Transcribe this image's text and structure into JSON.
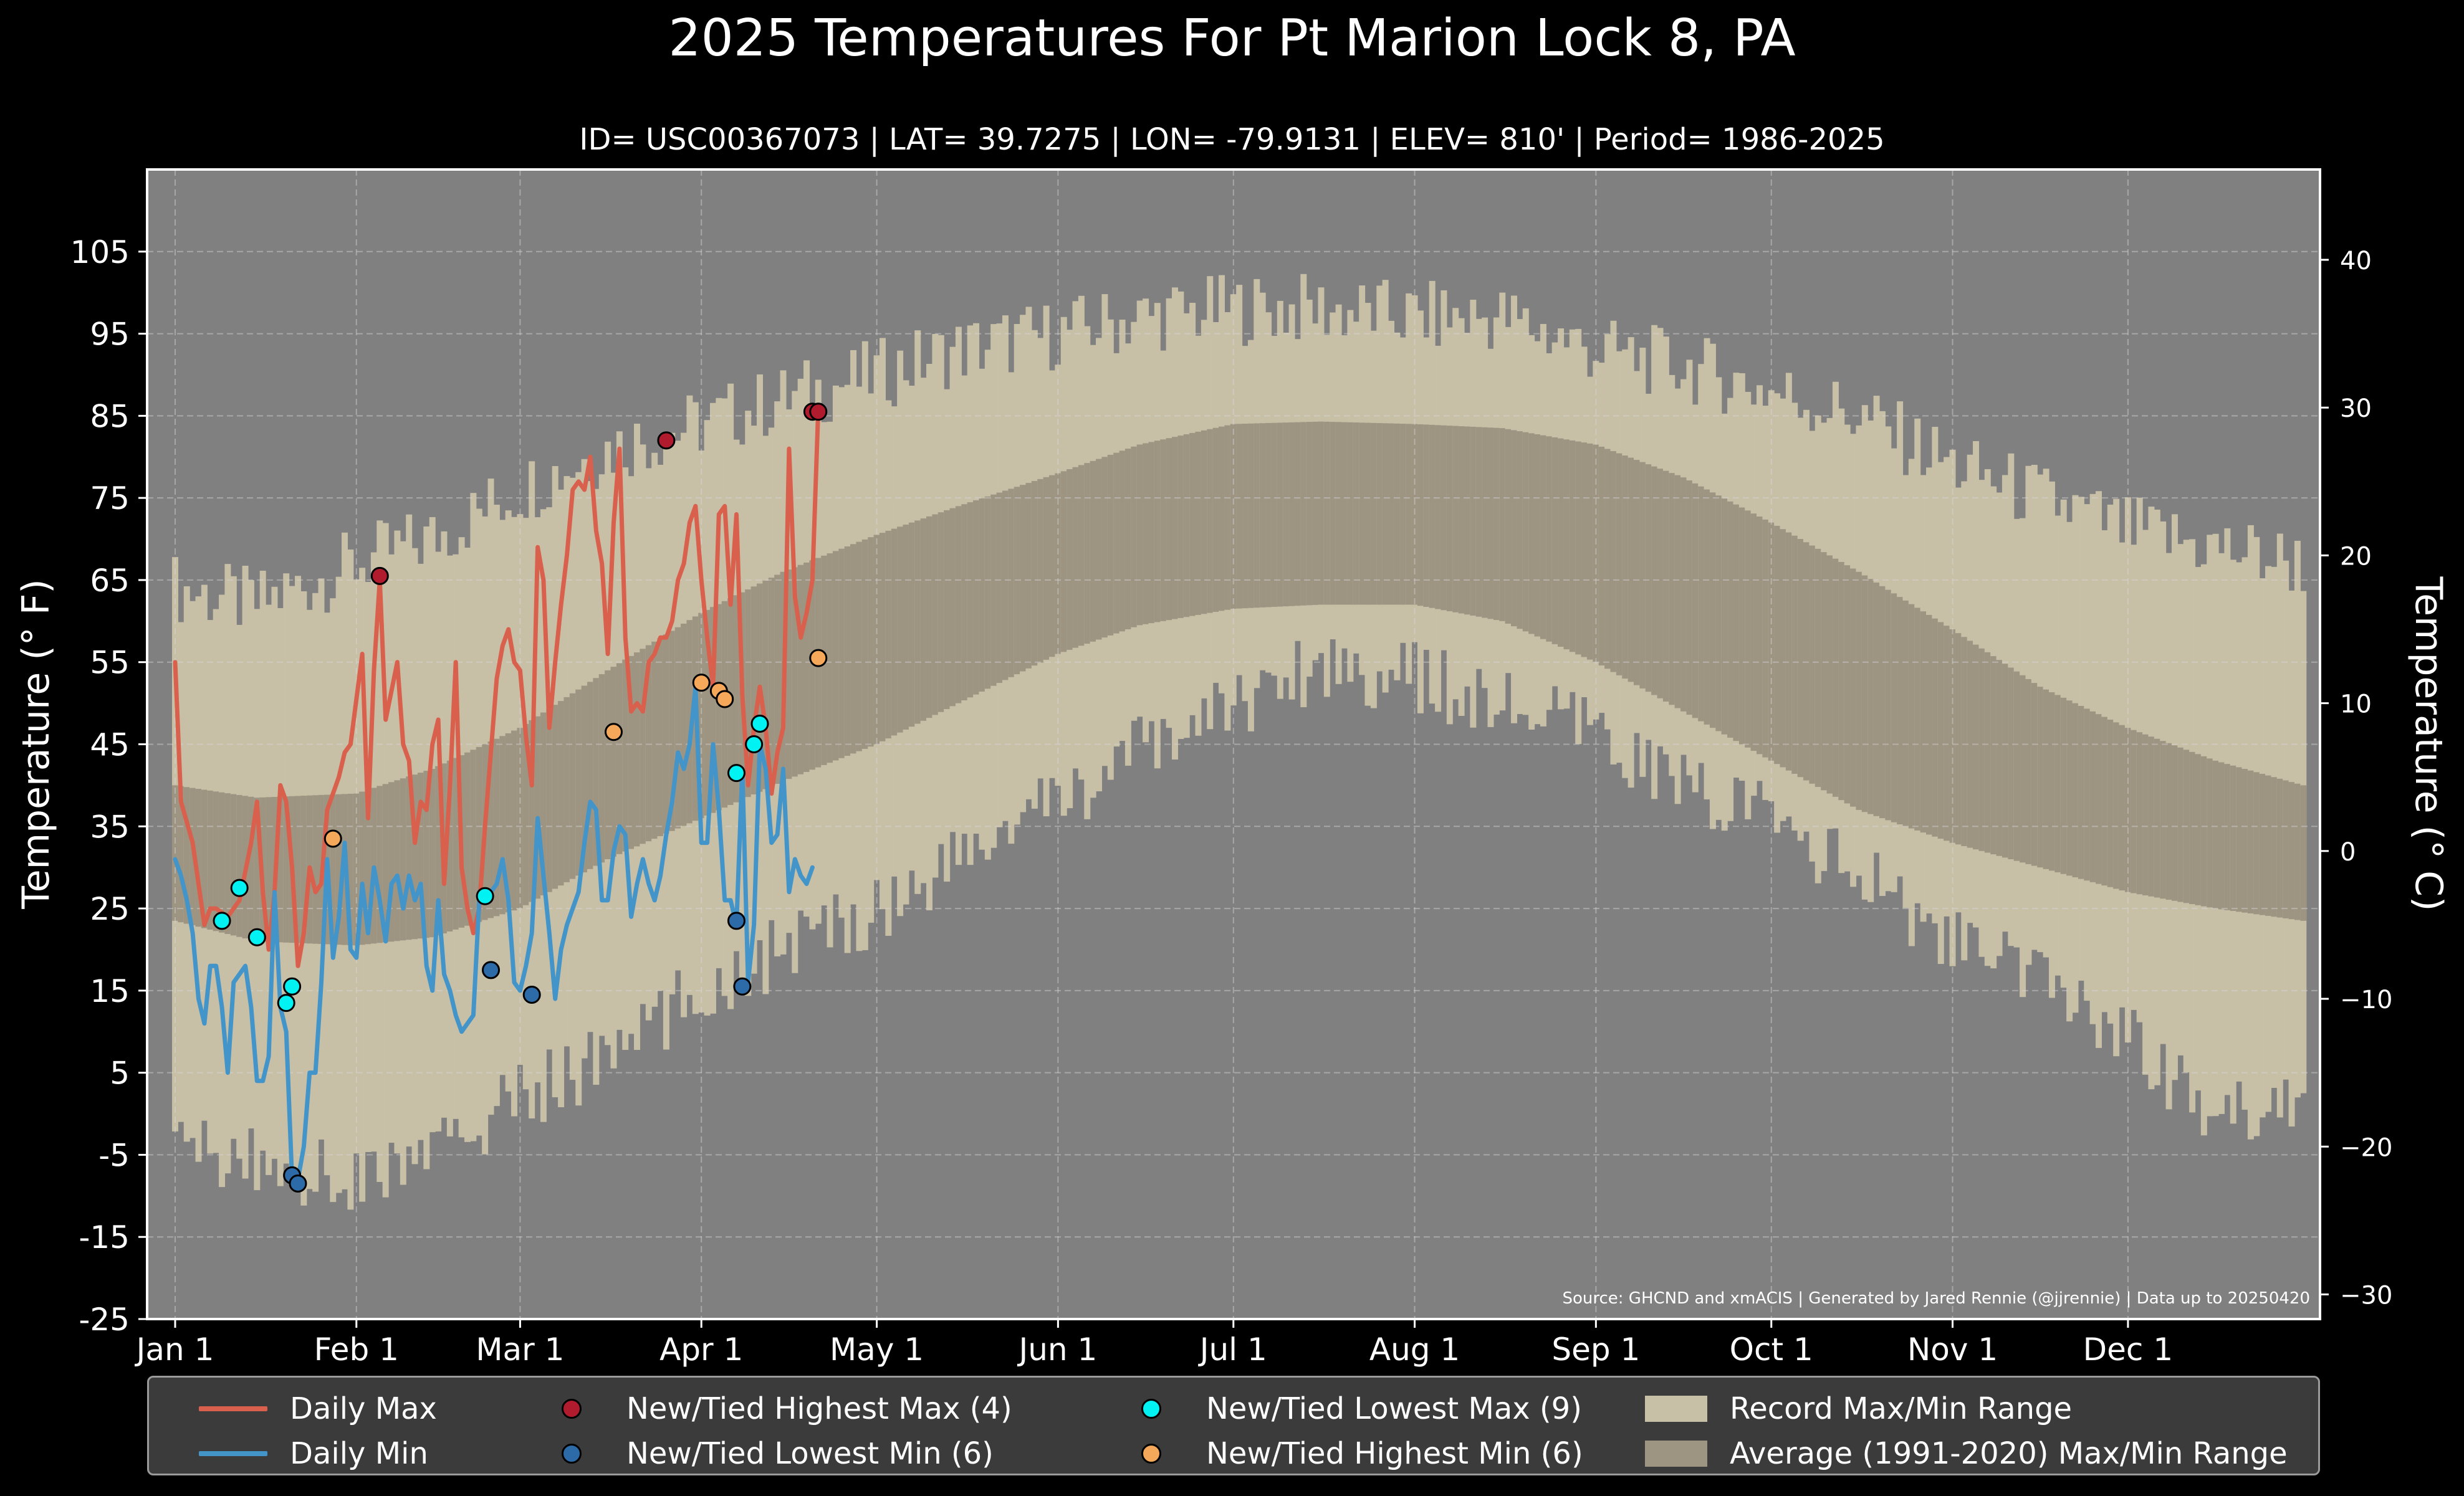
{
  "title": "2025 Temperatures For Pt Marion Lock 8, PA",
  "subtitle": "ID= USC00367073 | LAT= 39.7275 | LON= -79.9131 | ELEV= 810' | Period= 1986-2025",
  "source_note": "Source: GHCND and xmACIS | Generated by Jared Rennie (@jjrennie) | Data up to 20250420",
  "colors": {
    "background": "#000000",
    "plot_background": "#808080",
    "record_range": "#c8bfa7",
    "average_range": "#9d9482",
    "daily_max": "#d9604c",
    "daily_min": "#4395c9",
    "new_highest_max": "#b01c2e",
    "new_lowest_min": "#2d6aa8",
    "new_lowest_max": "#00f2f2",
    "new_highest_min": "#f5a85a"
  },
  "legend": [
    {
      "label": "Daily Max",
      "kind": "line",
      "color_key": "daily_max"
    },
    {
      "label": "Daily Min",
      "kind": "line",
      "color_key": "daily_min"
    },
    {
      "label": "New/Tied Highest Max (4)",
      "kind": "dot",
      "color_key": "new_highest_max"
    },
    {
      "label": "New/Tied Lowest Min (6)",
      "kind": "dot",
      "color_key": "new_lowest_min"
    },
    {
      "label": "New/Tied Lowest Max (9)",
      "kind": "dot",
      "color_key": "new_lowest_max"
    },
    {
      "label": "New/Tied Highest Min (6)",
      "kind": "dot",
      "color_key": "new_highest_min"
    },
    {
      "label": "Record Max/Min Range",
      "kind": "rect",
      "color_key": "record_range"
    },
    {
      "label": "Average (1991-2020) Max/Min Range",
      "kind": "rect",
      "color_key": "average_range"
    }
  ],
  "chart_data": {
    "type": "line",
    "ylabel": "Temperature ($^\\circ$F)",
    "ylabel_right": "Temperature ($^\\circ$C)",
    "ylim": [
      -25,
      115
    ],
    "xlim_day": [
      1,
      365
    ],
    "grid": true,
    "legend_position": "bottom",
    "x_ticks": [
      {
        "label": "Jan 1",
        "day": 1
      },
      {
        "label": "Feb 1",
        "day": 32
      },
      {
        "label": "Mar 1",
        "day": 60
      },
      {
        "label": "Apr 1",
        "day": 91
      },
      {
        "label": "May 1",
        "day": 121
      },
      {
        "label": "Jun 1",
        "day": 152
      },
      {
        "label": "Jul 1",
        "day": 182
      },
      {
        "label": "Aug 1",
        "day": 213
      },
      {
        "label": "Sep 1",
        "day": 244
      },
      {
        "label": "Oct 1",
        "day": 274
      },
      {
        "label": "Nov 1",
        "day": 305
      },
      {
        "label": "Dec 1",
        "day": 335
      }
    ],
    "y_ticks_f": [
      -25,
      -15,
      -5,
      5,
      15,
      25,
      35,
      45,
      55,
      65,
      75,
      85,
      95,
      105
    ],
    "y_ticks_c": [
      -30,
      -20,
      -10,
      0,
      10,
      20,
      30,
      40
    ],
    "y_tick_labels_c": [
      "−30",
      "−20",
      "−10",
      "0",
      "10",
      "20",
      "30",
      "40"
    ],
    "record_range_anchors": {
      "day": [
        1,
        15,
        32,
        45,
        60,
        75,
        91,
        105,
        121,
        135,
        152,
        166,
        182,
        197,
        213,
        228,
        244,
        259,
        274,
        289,
        305,
        320,
        335,
        350,
        365
      ],
      "record_max": [
        64,
        62,
        67,
        70,
        76,
        81,
        84,
        87,
        90,
        93,
        95,
        97,
        98,
        98,
        97,
        97,
        93,
        91,
        88,
        85,
        79,
        75,
        71,
        69,
        67
      ],
      "record_min": [
        -4,
        -6,
        -8,
        -5,
        2,
        7,
        15,
        20,
        25,
        31,
        38,
        44,
        50,
        55,
        53,
        50,
        46,
        40,
        36,
        29,
        21,
        16,
        10,
        -1,
        3
      ]
    },
    "average_range_anchors": {
      "day": [
        1,
        15,
        32,
        45,
        60,
        75,
        91,
        105,
        121,
        135,
        152,
        166,
        182,
        197,
        213,
        228,
        244,
        259,
        274,
        289,
        305,
        320,
        335,
        350,
        365
      ],
      "avg_max": [
        40,
        38.5,
        39,
        42,
        47,
        54,
        61,
        66,
        70.5,
        74,
        78,
        81.5,
        84,
        84.3,
        84,
        83.5,
        81.5,
        77.5,
        72,
        66,
        59,
        52,
        47,
        43,
        40
      ],
      "avg_min": [
        23.5,
        21,
        20.5,
        21.5,
        25,
        31,
        36,
        40.5,
        45,
        50,
        56,
        59.5,
        61.5,
        62,
        62,
        60,
        55,
        49,
        43,
        37,
        33,
        30,
        27,
        25,
        23.5
      ]
    },
    "series": [
      {
        "name": "Daily Max",
        "color_key": "daily_max",
        "points": [
          [
            1,
            55
          ],
          [
            2,
            38
          ],
          [
            4,
            33
          ],
          [
            5,
            28
          ],
          [
            6,
            23
          ],
          [
            7,
            25
          ],
          [
            8,
            25
          ],
          [
            10,
            24
          ],
          [
            12,
            26
          ],
          [
            14,
            33
          ],
          [
            15,
            38
          ],
          [
            16,
            27
          ],
          [
            17,
            20
          ],
          [
            18,
            27
          ],
          [
            19,
            40
          ],
          [
            20,
            38
          ],
          [
            21,
            30
          ],
          [
            22,
            18
          ],
          [
            23,
            22
          ],
          [
            24,
            30
          ],
          [
            25,
            27
          ],
          [
            26,
            28
          ],
          [
            27,
            37
          ],
          [
            29,
            41
          ],
          [
            30,
            44
          ],
          [
            31,
            45
          ],
          [
            33,
            56
          ],
          [
            34,
            36
          ],
          [
            35,
            54
          ],
          [
            36,
            65
          ],
          [
            37,
            48
          ],
          [
            39,
            55
          ],
          [
            40,
            45
          ],
          [
            41,
            43
          ],
          [
            42,
            33
          ],
          [
            43,
            38
          ],
          [
            44,
            37
          ],
          [
            45,
            45
          ],
          [
            46,
            48
          ],
          [
            47,
            28
          ],
          [
            48,
            40
          ],
          [
            49,
            55
          ],
          [
            50,
            30
          ],
          [
            51,
            25
          ],
          [
            52,
            22
          ],
          [
            53,
            25
          ],
          [
            54,
            35
          ],
          [
            56,
            53
          ],
          [
            57,
            57
          ],
          [
            58,
            59
          ],
          [
            59,
            55
          ],
          [
            60,
            54
          ],
          [
            61,
            46
          ],
          [
            62,
            40
          ],
          [
            63,
            69
          ],
          [
            64,
            65
          ],
          [
            65,
            47
          ],
          [
            66,
            55
          ],
          [
            67,
            62
          ],
          [
            68,
            68
          ],
          [
            69,
            76
          ],
          [
            70,
            77
          ],
          [
            71,
            76
          ],
          [
            72,
            80
          ],
          [
            73,
            71
          ],
          [
            74,
            67
          ],
          [
            75,
            56
          ],
          [
            76,
            72
          ],
          [
            77,
            81
          ],
          [
            78,
            58
          ],
          [
            79,
            49
          ],
          [
            80,
            50
          ],
          [
            81,
            49
          ],
          [
            82,
            55
          ],
          [
            83,
            56
          ],
          [
            84,
            58
          ],
          [
            85,
            58
          ],
          [
            86,
            60
          ],
          [
            87,
            65
          ],
          [
            88,
            67
          ],
          [
            89,
            72
          ],
          [
            90,
            74
          ],
          [
            91,
            65
          ],
          [
            92,
            58
          ],
          [
            93,
            52
          ],
          [
            94,
            73
          ],
          [
            95,
            74
          ],
          [
            96,
            62
          ],
          [
            97,
            73
          ],
          [
            98,
            51
          ],
          [
            99,
            40
          ],
          [
            100,
            47
          ],
          [
            101,
            52
          ],
          [
            102,
            47
          ],
          [
            103,
            39
          ],
          [
            104,
            44
          ],
          [
            105,
            47
          ],
          [
            106,
            81
          ],
          [
            107,
            63
          ],
          [
            108,
            58
          ],
          [
            109,
            61
          ],
          [
            110,
            65
          ],
          [
            111,
            86
          ]
        ]
      },
      {
        "name": "Daily Min",
        "color_key": "daily_min",
        "points": [
          [
            1,
            31
          ],
          [
            2,
            29
          ],
          [
            3,
            26
          ],
          [
            4,
            22
          ],
          [
            5,
            14
          ],
          [
            6,
            11
          ],
          [
            7,
            18
          ],
          [
            8,
            18
          ],
          [
            9,
            13
          ],
          [
            10,
            5
          ],
          [
            11,
            16
          ],
          [
            12,
            17
          ],
          [
            13,
            18
          ],
          [
            14,
            13
          ],
          [
            15,
            4
          ],
          [
            16,
            4
          ],
          [
            17,
            7
          ],
          [
            18,
            27
          ],
          [
            19,
            13
          ],
          [
            20,
            10
          ],
          [
            21,
            -8
          ],
          [
            22,
            -8
          ],
          [
            23,
            -4
          ],
          [
            24,
            5
          ],
          [
            25,
            5
          ],
          [
            26,
            16
          ],
          [
            27,
            31
          ],
          [
            28,
            19
          ],
          [
            29,
            24
          ],
          [
            30,
            33
          ],
          [
            31,
            20
          ],
          [
            32,
            19
          ],
          [
            33,
            28
          ],
          [
            34,
            22
          ],
          [
            35,
            30
          ],
          [
            36,
            26
          ],
          [
            37,
            21
          ],
          [
            38,
            28
          ],
          [
            39,
            29
          ],
          [
            40,
            25
          ],
          [
            41,
            29
          ],
          [
            42,
            26
          ],
          [
            43,
            28
          ],
          [
            44,
            18
          ],
          [
            45,
            15
          ],
          [
            46,
            26
          ],
          [
            47,
            17
          ],
          [
            48,
            15
          ],
          [
            49,
            12
          ],
          [
            50,
            10
          ],
          [
            51,
            11
          ],
          [
            52,
            12
          ],
          [
            53,
            26
          ],
          [
            54,
            27
          ],
          [
            55,
            27
          ],
          [
            56,
            28
          ],
          [
            57,
            31
          ],
          [
            58,
            26
          ],
          [
            59,
            16
          ],
          [
            60,
            15
          ],
          [
            61,
            18
          ],
          [
            62,
            22
          ],
          [
            63,
            36
          ],
          [
            64,
            29
          ],
          [
            65,
            22
          ],
          [
            66,
            14
          ],
          [
            67,
            20
          ],
          [
            68,
            23
          ],
          [
            69,
            25
          ],
          [
            70,
            27
          ],
          [
            71,
            33
          ],
          [
            72,
            38
          ],
          [
            73,
            37
          ],
          [
            74,
            26
          ],
          [
            75,
            26
          ],
          [
            76,
            32
          ],
          [
            77,
            35
          ],
          [
            78,
            34
          ],
          [
            79,
            24
          ],
          [
            80,
            28
          ],
          [
            81,
            31
          ],
          [
            82,
            28
          ],
          [
            83,
            26
          ],
          [
            84,
            29
          ],
          [
            85,
            34
          ],
          [
            86,
            38
          ],
          [
            87,
            44
          ],
          [
            88,
            42
          ],
          [
            89,
            45
          ],
          [
            90,
            52
          ],
          [
            91,
            33
          ],
          [
            92,
            33
          ],
          [
            93,
            45
          ],
          [
            94,
            37
          ],
          [
            95,
            26
          ],
          [
            96,
            26
          ],
          [
            97,
            23
          ],
          [
            98,
            42
          ],
          [
            99,
            16
          ],
          [
            100,
            23
          ],
          [
            101,
            45
          ],
          [
            102,
            42
          ],
          [
            103,
            33
          ],
          [
            104,
            34
          ],
          [
            105,
            42
          ],
          [
            106,
            27
          ],
          [
            107,
            31
          ],
          [
            108,
            29
          ],
          [
            109,
            28
          ],
          [
            110,
            30
          ]
        ]
      }
    ],
    "markers": [
      {
        "name": "New/Tied Highest Max (4)",
        "color_key": "new_highest_max",
        "points": [
          [
            36,
            65.5
          ],
          [
            85,
            82
          ],
          [
            110,
            85.5
          ],
          [
            111,
            85.5
          ]
        ]
      },
      {
        "name": "New/Tied Lowest Min (6)",
        "color_key": "new_lowest_min",
        "points": [
          [
            21,
            -7.5
          ],
          [
            22,
            -8.5
          ],
          [
            55,
            17.5
          ],
          [
            62,
            14.5
          ],
          [
            97,
            23.5
          ],
          [
            98,
            15.5
          ]
        ]
      },
      {
        "name": "New/Tied Lowest Max (9)",
        "color_key": "new_lowest_max",
        "points": [
          [
            9,
            23.5
          ],
          [
            12,
            27.5
          ],
          [
            15,
            21.5
          ],
          [
            20,
            13.5
          ],
          [
            21,
            15.5
          ],
          [
            54,
            26.5
          ],
          [
            97,
            41.5
          ],
          [
            100,
            45
          ],
          [
            101,
            47.5
          ]
        ]
      },
      {
        "name": "New/Tied Highest Min (6)",
        "color_key": "new_highest_min",
        "points": [
          [
            28,
            33.5
          ],
          [
            76,
            46.5
          ],
          [
            91,
            52.5
          ],
          [
            94,
            51.5
          ],
          [
            95,
            50.5
          ],
          [
            111,
            55.5
          ]
        ]
      }
    ]
  }
}
